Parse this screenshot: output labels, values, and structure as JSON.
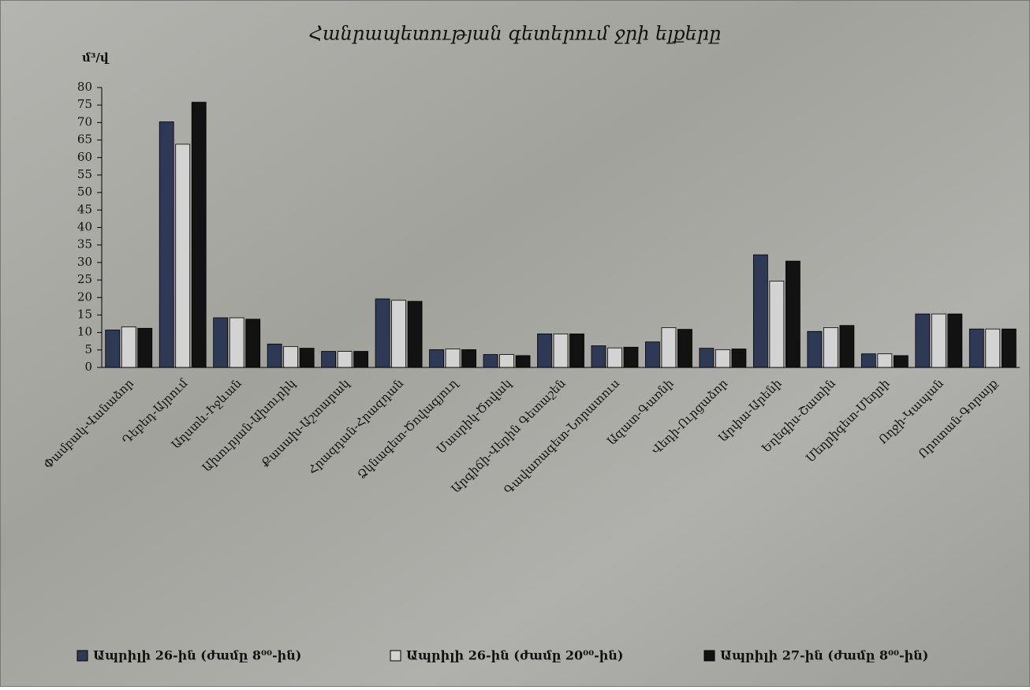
{
  "chart_data": {
    "type": "bar",
    "title": "Հանրապետության գետերում ջրի ելքերը",
    "y_label": "մ³/վ",
    "categories": [
      "Փամբակ-Վանաձոր",
      "Դեբեդ-Այրում",
      "Աղստև-Իջևան",
      "Ախուրյան-Ախուրիկ",
      "Քասախ-Աշտարակ",
      "Հրազդան-Հրազդան",
      "Ձկնագետ-Ծովագյուղ",
      "Մասրիկ-Ծովակ",
      "Արգիճի-Վերին Գետաշեն",
      "Գավառագետ-Նորատուս",
      "Ազատ-Գառնի",
      "Վեդի-Ուրցաձոր",
      "Արփա-Արենի",
      "Եղեգիս-Շատին",
      "Մեղրիգետ-Մեղրի",
      "Ողջի-Կապան",
      "Որոտան-Գորայք"
    ],
    "series": [
      {
        "name": "Ապրիլի 26-ին (ժամը 8⁰⁰-ին)",
        "color": "#2e3a55",
        "values": [
          10.7,
          70.2,
          14.2,
          6.7,
          4.6,
          19.6,
          5.1,
          3.7,
          9.6,
          6.2,
          7.3,
          5.5,
          32.2,
          10.3,
          3.9,
          15.3,
          11.0
        ]
      },
      {
        "name": "Ապրիլի 26-ին (ժամը 20⁰⁰-ին)",
        "color": "#d3d3d3",
        "values": [
          11.6,
          63.8,
          14.2,
          6.0,
          4.6,
          19.2,
          5.3,
          3.7,
          9.6,
          5.6,
          11.4,
          5.1,
          24.7,
          11.4,
          3.9,
          15.3,
          11.0
        ]
      },
      {
        "name": "Ապրիլի 27-ին (ժամը 8⁰⁰-ին)",
        "color": "#121212",
        "values": [
          11.2,
          75.8,
          13.8,
          5.5,
          4.6,
          18.9,
          5.1,
          3.4,
          9.6,
          5.8,
          10.9,
          5.3,
          30.4,
          12.0,
          3.4,
          15.3,
          11.0
        ]
      }
    ],
    "ylim": [
      0,
      80
    ],
    "yticks": [
      0,
      5,
      10,
      15,
      20,
      25,
      30,
      35,
      40,
      45,
      50,
      55,
      60,
      65,
      70,
      75,
      80
    ],
    "grid": false,
    "legend": "bottom"
  }
}
